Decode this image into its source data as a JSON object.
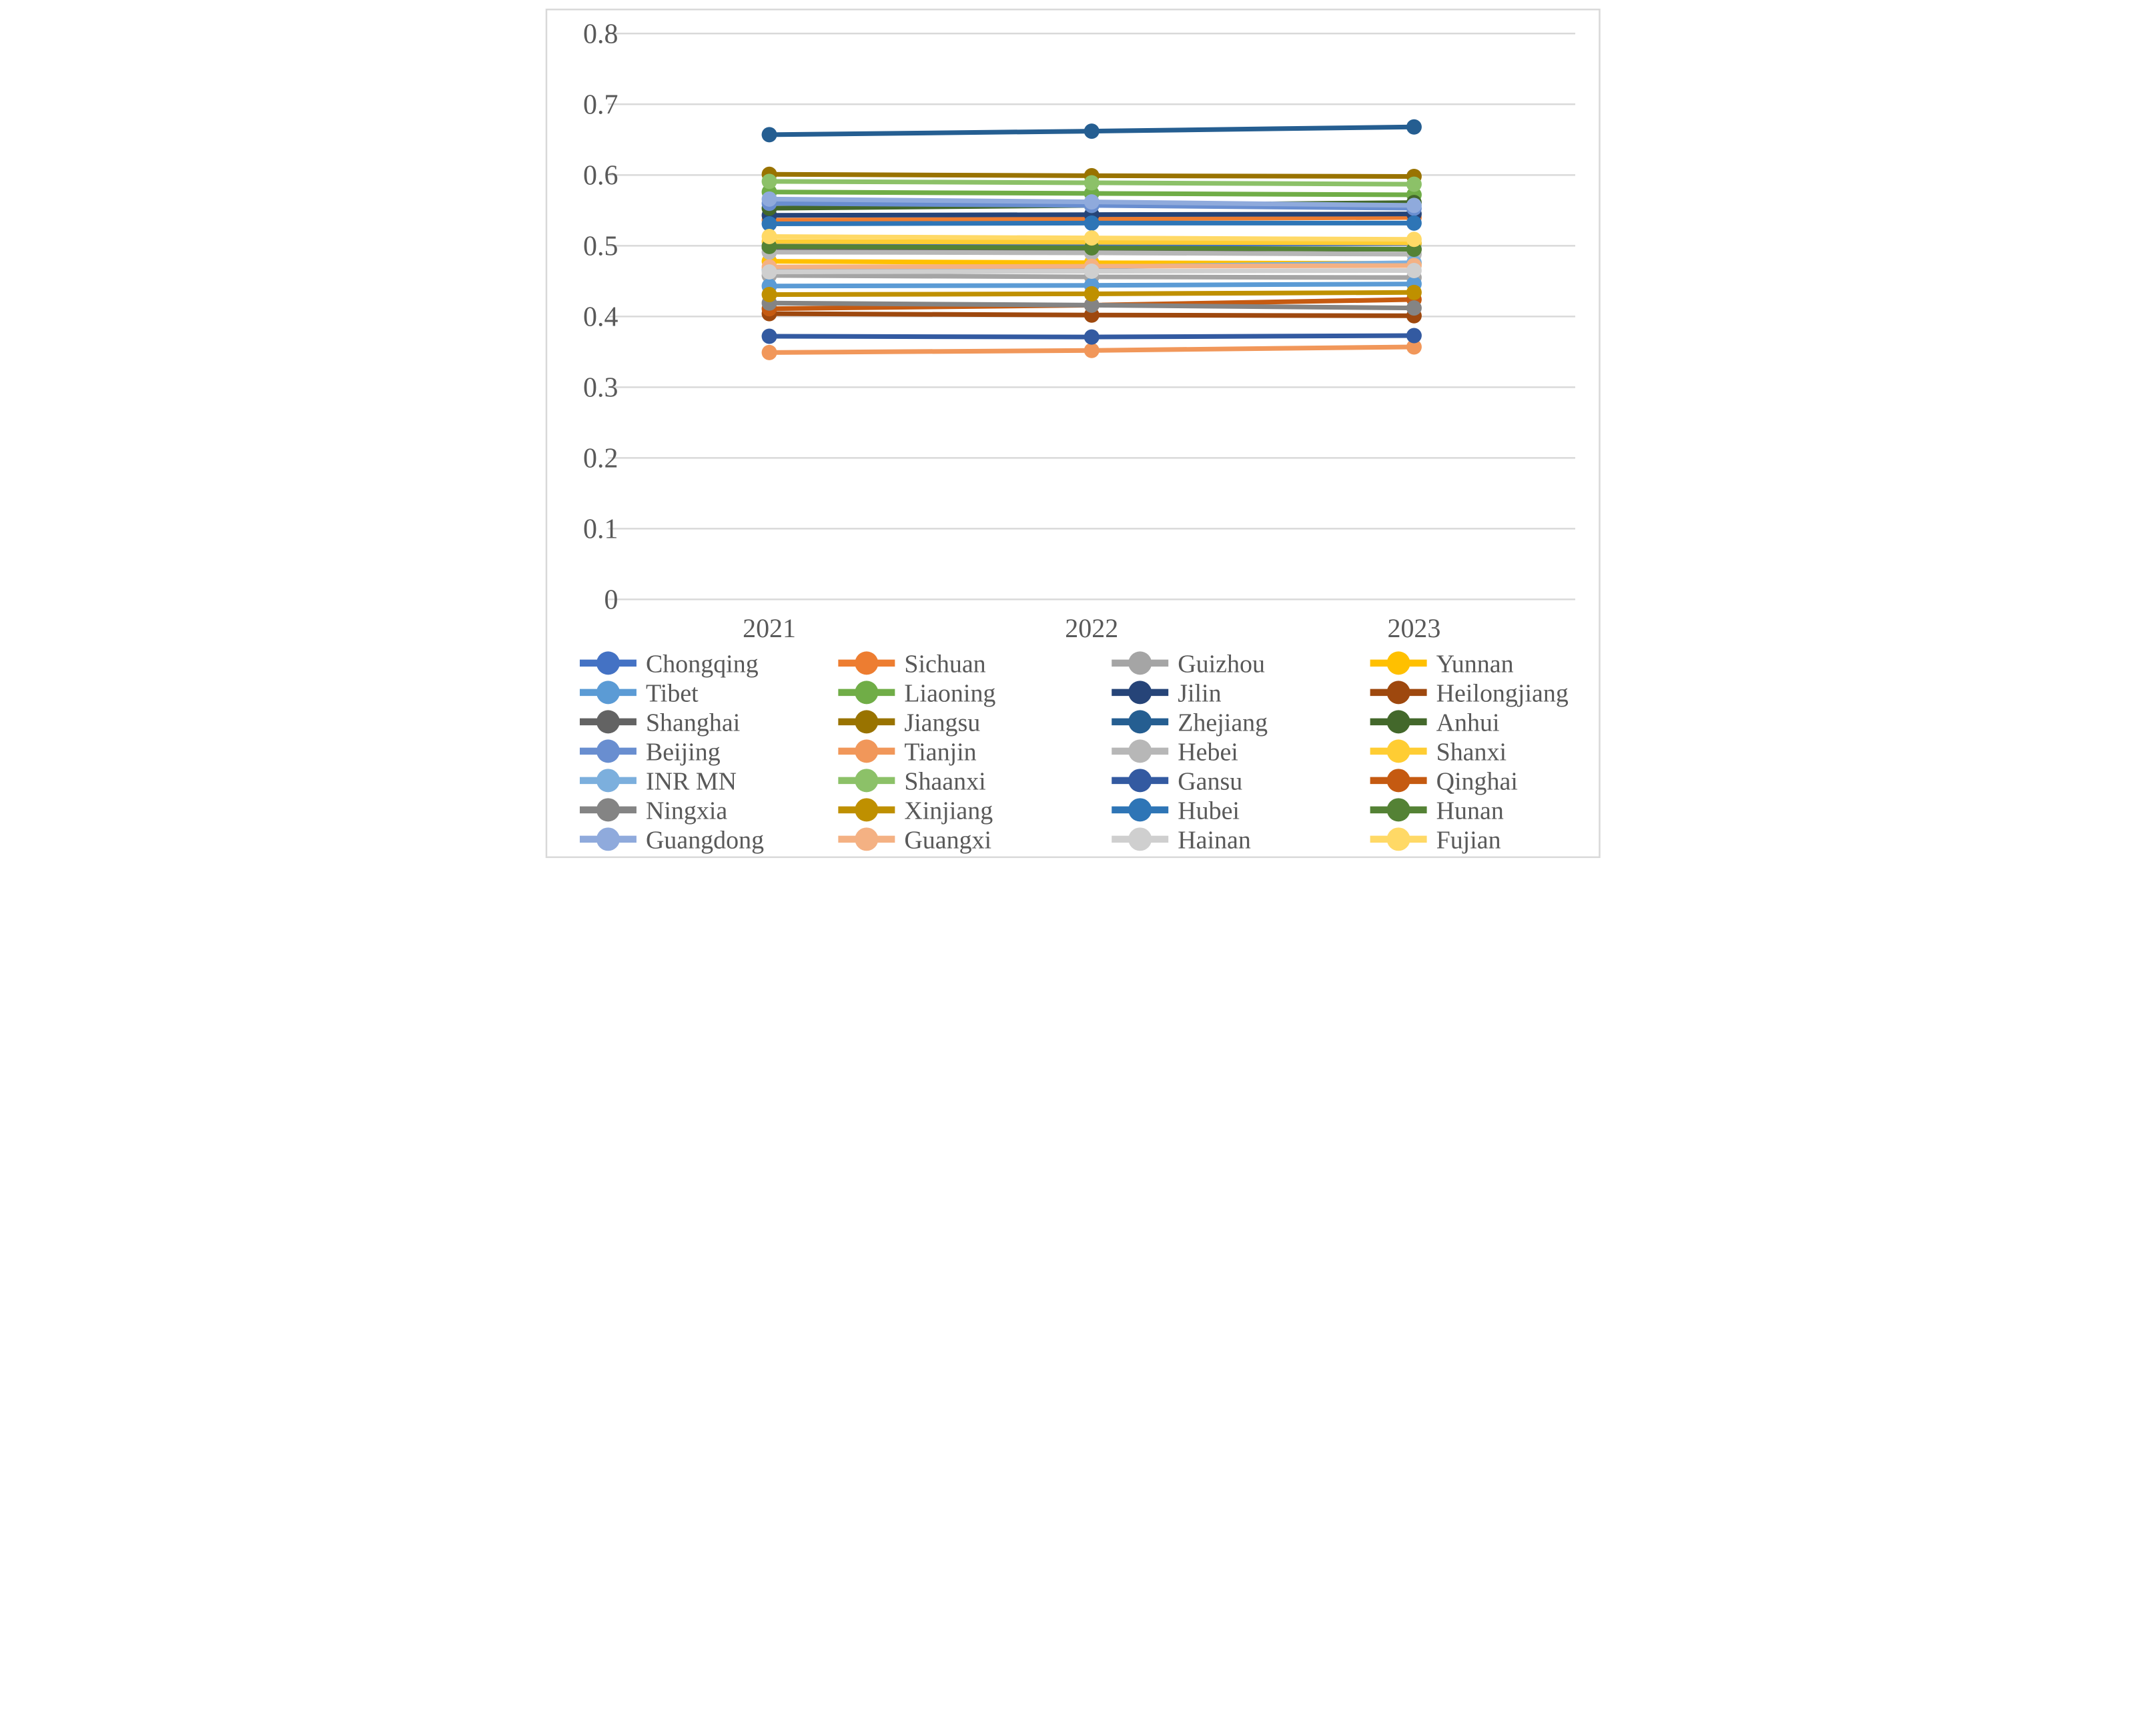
{
  "chart_data": {
    "type": "line",
    "title": "",
    "xlabel": "",
    "ylabel": "",
    "categories": [
      "2021",
      "2022",
      "2023"
    ],
    "ylim": [
      0,
      0.8
    ],
    "ytick_step": 0.1,
    "ytick_labels": [
      "0",
      "0.1",
      "0.2",
      "0.3",
      "0.4",
      "0.5",
      "0.6",
      "0.7",
      "0.8"
    ],
    "grid": true,
    "legend_position": "bottom",
    "legend_columns": 4,
    "marker": "circle",
    "axis_text_color": "#595959",
    "gridline_color": "#D9D9D9",
    "border_color": "#D9D9D9",
    "background_color": "#FFFFFF",
    "series": [
      {
        "name": "Chongqing",
        "color": "#4472C4",
        "values": [
          0.5,
          0.502,
          0.503
        ]
      },
      {
        "name": "Sichuan",
        "color": "#ED7D31",
        "values": [
          0.536,
          0.538,
          0.54
        ]
      },
      {
        "name": "Guizhou",
        "color": "#A5A5A5",
        "values": [
          0.458,
          0.456,
          0.455
        ]
      },
      {
        "name": "Yunnan",
        "color": "#FFC000",
        "values": [
          0.478,
          0.476,
          0.475
        ]
      },
      {
        "name": "Tibet",
        "color": "#5B9BD5",
        "values": [
          0.443,
          0.444,
          0.446
        ]
      },
      {
        "name": "Liaoning",
        "color": "#70AD47",
        "values": [
          0.576,
          0.574,
          0.572
        ]
      },
      {
        "name": "Jilin",
        "color": "#264478",
        "values": [
          0.543,
          0.544,
          0.545
        ]
      },
      {
        "name": "Heilongjiang",
        "color": "#9E480E",
        "values": [
          0.404,
          0.402,
          0.401
        ]
      },
      {
        "name": "Shanghai",
        "color": "#636363",
        "values": [
          0.497,
          0.496,
          0.495
        ]
      },
      {
        "name": "Jiangsu",
        "color": "#997300",
        "values": [
          0.601,
          0.599,
          0.598
        ]
      },
      {
        "name": "Zhejiang",
        "color": "#255E91",
        "values": [
          0.657,
          0.662,
          0.668
        ]
      },
      {
        "name": "Anhui",
        "color": "#43682B",
        "values": [
          0.553,
          0.557,
          0.561
        ]
      },
      {
        "name": "Beijing",
        "color": "#698ED0",
        "values": [
          0.56,
          0.557,
          0.553
        ]
      },
      {
        "name": "Tianjin",
        "color": "#F1975A",
        "values": [
          0.349,
          0.352,
          0.357
        ]
      },
      {
        "name": "Hebei",
        "color": "#B7B7B7",
        "values": [
          0.491,
          0.49,
          0.488
        ]
      },
      {
        "name": "Shanxi",
        "color": "#FFCD33",
        "values": [
          0.506,
          0.505,
          0.504
        ]
      },
      {
        "name": "INR MN",
        "color": "#7CAFDD",
        "values": [
          0.466,
          0.47,
          0.476
        ]
      },
      {
        "name": "Shaanxi",
        "color": "#8CC168",
        "values": [
          0.591,
          0.589,
          0.587
        ]
      },
      {
        "name": "Gansu",
        "color": "#335AA1",
        "values": [
          0.372,
          0.371,
          0.373
        ]
      },
      {
        "name": "Qinghai",
        "color": "#C55A11",
        "values": [
          0.411,
          0.416,
          0.424
        ]
      },
      {
        "name": "Ningxia",
        "color": "#848484",
        "values": [
          0.419,
          0.416,
          0.412
        ]
      },
      {
        "name": "Xinjiang",
        "color": "#BF9000",
        "values": [
          0.431,
          0.432,
          0.434
        ]
      },
      {
        "name": "Hubei",
        "color": "#2E75B6",
        "values": [
          0.531,
          0.532,
          0.532
        ]
      },
      {
        "name": "Hunan",
        "color": "#548235",
        "values": [
          0.499,
          0.497,
          0.495
        ]
      },
      {
        "name": "Guangdong",
        "color": "#8FAADC",
        "values": [
          0.566,
          0.562,
          0.557
        ]
      },
      {
        "name": "Guangxi",
        "color": "#F4B183",
        "values": [
          0.47,
          0.471,
          0.472
        ]
      },
      {
        "name": "Hainan",
        "color": "#CFCFCF",
        "values": [
          0.463,
          0.464,
          0.465
        ]
      },
      {
        "name": "Fujian",
        "color": "#FFD966",
        "values": [
          0.513,
          0.511,
          0.509
        ]
      }
    ]
  }
}
